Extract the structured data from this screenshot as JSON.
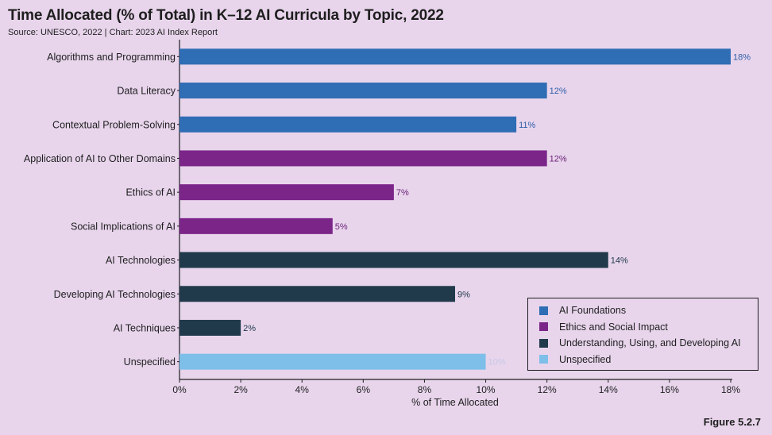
{
  "header": {
    "title": "Time Allocated (% of Total) in K–12 AI Curricula by Topic, 2022",
    "subtitle": "Source: UNESCO, 2022 | Chart: 2023 AI Index Report"
  },
  "figure_label": "Figure 5.2.7",
  "colors": {
    "AI Foundations": "#2f6db4",
    "Ethics and Social Impact": "#7b2589",
    "Understanding, Using, and Developing AI": "#213a4b",
    "Unspecified": "#7ebfe9"
  },
  "chart_data": {
    "type": "bar",
    "orientation": "horizontal",
    "title": "Time Allocated (% of Total) in K–12 AI Curricula by Topic, 2022",
    "xlabel": "% of Time Allocated",
    "ylabel": "",
    "xlim": [
      0,
      18
    ],
    "x_ticks": [
      0,
      2,
      4,
      6,
      8,
      10,
      12,
      14,
      16,
      18
    ],
    "x_tick_labels": [
      "0%",
      "2%",
      "4%",
      "6%",
      "8%",
      "10%",
      "12%",
      "14%",
      "16%",
      "18%"
    ],
    "grid": false,
    "legend_position": "bottom-right",
    "categories": [
      "Algorithms and Programming",
      "Data Literacy",
      "Contextual Problem-Solving",
      "Application of AI to Other Domains",
      "Ethics of AI",
      "Social Implications of AI",
      "AI Technologies",
      "Developing AI Technologies",
      "AI Techniques",
      "Unspecified"
    ],
    "values": [
      18,
      12,
      11,
      12,
      7,
      5,
      14,
      9,
      2,
      10
    ],
    "value_labels": [
      "18%",
      "12%",
      "11%",
      "12%",
      "7%",
      "5%",
      "14%",
      "9%",
      "2%",
      "10%"
    ],
    "groups": [
      "AI Foundations",
      "AI Foundations",
      "AI Foundations",
      "Ethics and Social Impact",
      "Ethics and Social Impact",
      "Ethics and Social Impact",
      "Understanding, Using, and Developing AI",
      "Understanding, Using, and Developing AI",
      "Understanding, Using, and Developing AI",
      "Unspecified"
    ],
    "legend": [
      "AI Foundations",
      "Ethics and Social Impact",
      "Understanding, Using, and Developing AI",
      "Unspecified"
    ]
  }
}
